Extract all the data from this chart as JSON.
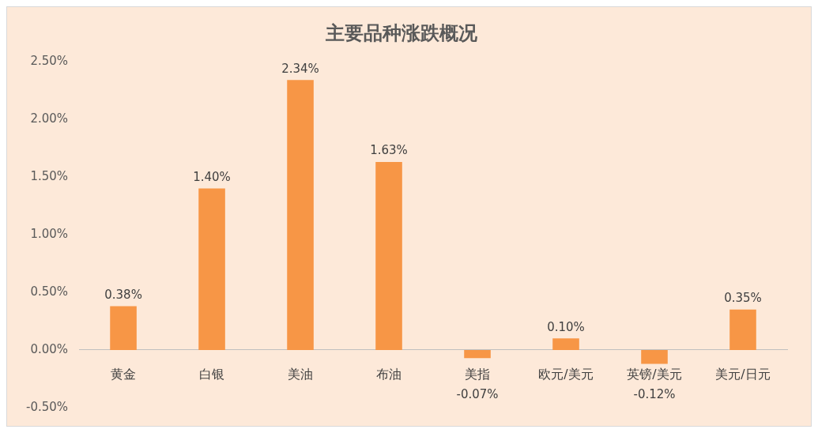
{
  "chart_data": {
    "type": "bar",
    "title": "主要品种涨跌概况",
    "categories": [
      "黄金",
      "白银",
      "美油",
      "布油",
      "美指",
      "欧元/美元",
      "英镑/美元",
      "美元/日元"
    ],
    "values": [
      0.38,
      1.4,
      2.34,
      1.63,
      -0.07,
      0.1,
      -0.12,
      0.35
    ],
    "value_labels": [
      "0.38%",
      "1.40%",
      "2.34%",
      "1.63%",
      "-0.07%",
      "0.10%",
      "-0.12%",
      "0.35%"
    ],
    "color": "#f79646",
    "ylim": [
      -0.5,
      2.5
    ],
    "yticks": [
      {
        "value": -0.5,
        "label": "-0.50%"
      },
      {
        "value": 0,
        "label": "0.00%"
      },
      {
        "value": 0.5,
        "label": "0.50%"
      },
      {
        "value": 1,
        "label": "1.00%"
      },
      {
        "value": 1.5,
        "label": "1.50%"
      },
      {
        "value": 2,
        "label": "2.00%"
      },
      {
        "value": 2.5,
        "label": "2.50%"
      }
    ],
    "grid": false,
    "legend": false
  }
}
